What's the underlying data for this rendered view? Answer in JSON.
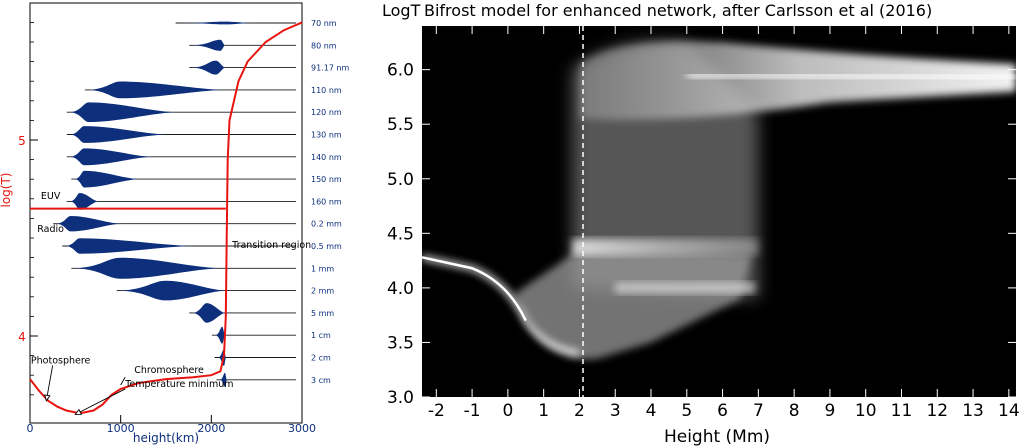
{
  "chart_data": [
    {
      "type": "line",
      "xlabel": "height(km)",
      "ylabel": "log(T)",
      "xlim": [
        0,
        3000
      ],
      "x_ticks": [
        0,
        1000,
        2000,
        3000
      ],
      "y_ticks": [
        4,
        5
      ],
      "curve_color": "#e8140f",
      "emission_color": "#0d2f7c",
      "series": [
        {
          "x": [
            0,
            100,
            200,
            300,
            400,
            500,
            550,
            600,
            700,
            800,
            900,
            1000,
            1200,
            1500,
            1800,
            2000,
            2100,
            2140,
            2160,
            2170,
            2180,
            2200,
            2300,
            2400,
            2600,
            2800,
            3000
          ],
          "y": [
            3.78,
            3.72,
            3.67,
            3.64,
            3.62,
            3.61,
            3.605,
            3.61,
            3.62,
            3.65,
            3.7,
            3.73,
            3.76,
            3.78,
            3.79,
            3.8,
            3.82,
            3.9,
            4.1,
            4.5,
            4.9,
            5.1,
            5.3,
            5.4,
            5.5,
            5.56,
            5.6
          ]
        }
      ],
      "wavelength_labels": [
        "70 nm",
        "80 nm",
        "91.17 nm",
        "110 nm",
        "120 nm",
        "130 nm",
        "140 nm",
        "150 nm",
        "160 nm",
        "0.2 mm",
        "0.5 mm",
        "1 mm",
        "2 mm",
        "5 mm",
        "1 cm",
        "2 cm",
        "3 cm"
      ],
      "emission_rows": [
        {
          "label": "70 nm",
          "start": 1650,
          "peak": 2150,
          "end": 2450,
          "thickness": 0.1
        },
        {
          "label": "80 nm",
          "start": 1800,
          "peak": 2100,
          "end": 2150,
          "thickness": 0.4
        },
        {
          "label": "91.17 nm",
          "start": 1800,
          "peak": 2050,
          "end": 2150,
          "thickness": 0.5
        },
        {
          "label": "110 nm",
          "start": 650,
          "peak": 1000,
          "end": 2150,
          "thickness": 0.6
        },
        {
          "label": "120 nm",
          "start": 450,
          "peak": 650,
          "end": 1600,
          "thickness": 0.7
        },
        {
          "label": "130 nm",
          "start": 450,
          "peak": 600,
          "end": 1500,
          "thickness": 0.6
        },
        {
          "label": "140 nm",
          "start": 450,
          "peak": 600,
          "end": 1350,
          "thickness": 0.6
        },
        {
          "label": "150 nm",
          "start": 500,
          "peak": 600,
          "end": 1200,
          "thickness": 0.6
        },
        {
          "label": "160 nm",
          "start": 450,
          "peak": 550,
          "end": 750,
          "thickness": 0.6
        },
        {
          "label": "0.2 mm",
          "start": 300,
          "peak": 450,
          "end": 1000,
          "thickness": 0.55
        },
        {
          "label": "0.5 mm",
          "start": 400,
          "peak": 550,
          "end": 1800,
          "thickness": 0.55
        },
        {
          "label": "1 mm",
          "start": 500,
          "peak": 1000,
          "end": 2100,
          "thickness": 0.75
        },
        {
          "label": "2 mm",
          "start": 1000,
          "peak": 1500,
          "end": 2150,
          "thickness": 0.7
        },
        {
          "label": "5 mm",
          "start": 1800,
          "peak": 1950,
          "end": 2150,
          "thickness": 0.7
        },
        {
          "label": "1 cm",
          "start": 2050,
          "peak": 2120,
          "end": 2150,
          "thickness": 0.6
        },
        {
          "label": "2 cm",
          "start": 2080,
          "peak": 2140,
          "end": 2160,
          "thickness": 0.6
        },
        {
          "label": "3 cm",
          "start": 2100,
          "peak": 2150,
          "end": 2170,
          "thickness": 0.5
        }
      ],
      "euv_radio_divider_logT": 4.65,
      "annotations": [
        {
          "text": "EUV",
          "x": 120,
          "y": 4.7
        },
        {
          "text": "Radio",
          "x": 80,
          "y": 4.53
        },
        {
          "text": "Transition region",
          "x": 2230,
          "y": 4.45
        },
        {
          "text": "Photosphere",
          "x": 10,
          "y": 3.86
        },
        {
          "text": "Chromosphere",
          "x": 1150,
          "y": 3.81
        },
        {
          "text": "Temperature minimum",
          "x": 1050,
          "y": 3.74
        }
      ]
    },
    {
      "type": "heatmap",
      "title": "Bifrost model for enhanced network, after Carlsson et al (2016)",
      "ylabel": "LogT",
      "xlabel": "Height (Mm)",
      "xlim": [
        -2.4,
        14.2
      ],
      "ylim": [
        3.0,
        6.4
      ],
      "x_ticks": [
        -2,
        -1,
        0,
        1,
        2,
        3,
        4,
        5,
        6,
        7,
        8,
        9,
        10,
        11,
        12,
        13,
        14
      ],
      "y_ticks": [
        3.0,
        3.5,
        4.0,
        4.5,
        5.0,
        5.5,
        6.0
      ],
      "dashed_line_x": 2.1,
      "dashed_line_color": "#ffffff",
      "background": "#000000"
    }
  ]
}
